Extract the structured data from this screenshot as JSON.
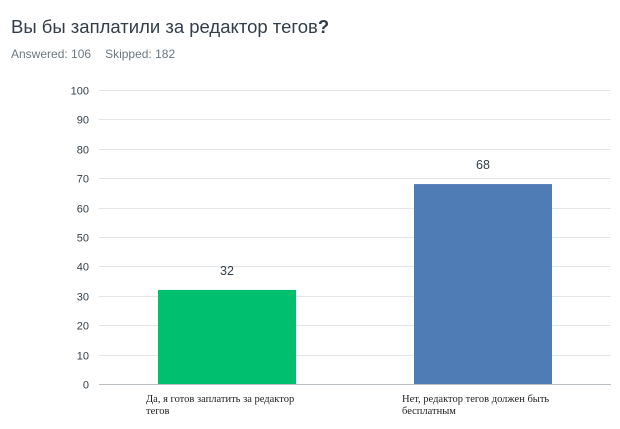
{
  "question": {
    "title": "Вы бы заплатили за редактор тегов",
    "title_suffix": "?",
    "answered_label": "Answered: 106",
    "skipped_label": "Skipped: 182"
  },
  "colors": {
    "bar_yes": "#00bf6f",
    "bar_no": "#507cb6",
    "grid": "#e3e6e8",
    "axis": "#b9bfc3"
  },
  "chart_data": {
    "type": "bar",
    "title": "Вы бы заплатили за редактор тегов?",
    "xlabel": "",
    "ylabel": "",
    "ylim": [
      0,
      100
    ],
    "yticks": [
      0,
      10,
      20,
      30,
      40,
      50,
      60,
      70,
      80,
      90,
      100
    ],
    "grid": true,
    "categories": [
      "Да, я готов заплатить за редактор тегов",
      "Нет, редактор тегов должен быть бесплатным"
    ],
    "values": [
      32,
      68
    ],
    "data_labels": [
      "32",
      "68"
    ],
    "bar_colors": [
      "#00bf6f",
      "#507cb6"
    ]
  }
}
